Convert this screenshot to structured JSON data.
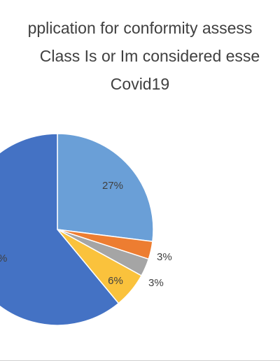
{
  "chart_data": {
    "type": "pie",
    "title_lines": [
      "pplication for conformity assess",
      "Class Is or Im considered esse",
      "Covid19"
    ],
    "slices": [
      {
        "value": 27,
        "label": "27%",
        "color": "#6A9FD7"
      },
      {
        "value": 3,
        "label": "3%",
        "color": "#ED7D31"
      },
      {
        "value": 3,
        "label": "3%",
        "color": "#A5A5A5"
      },
      {
        "value": 6,
        "label": "6%",
        "color": "#FAC23C"
      },
      {
        "value": 61,
        "label": "%",
        "color": "#4472C4"
      }
    ]
  }
}
